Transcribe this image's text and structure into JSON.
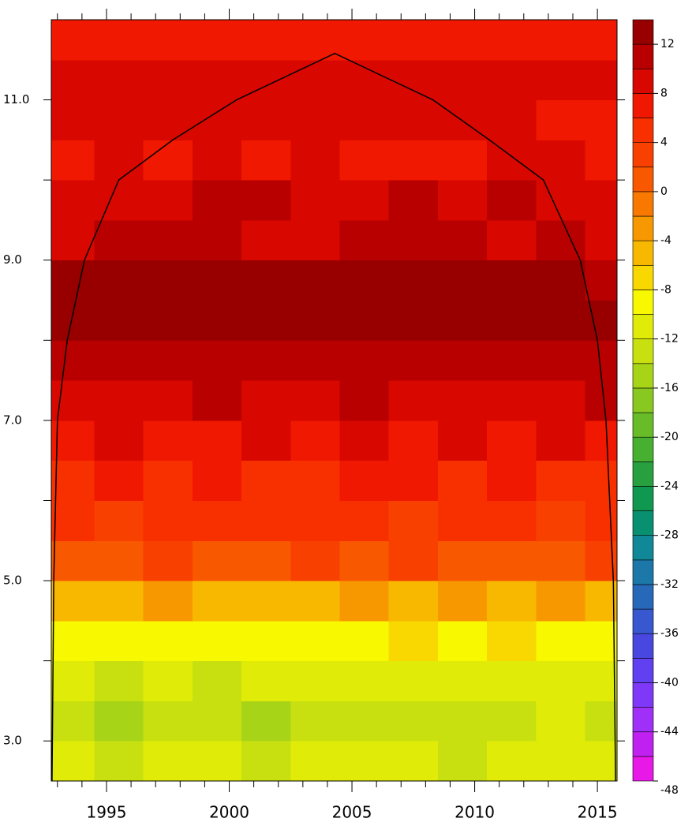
{
  "chart_data": {
    "type": "contour",
    "x": [
      1993.5,
      1995.5,
      1997.5,
      1999.5,
      2001.5,
      2003.5,
      2005.5,
      2007.5,
      2009.5,
      2011.5,
      2013.5,
      2015.5
    ],
    "y": [
      2.75,
      3.25,
      3.75,
      4.25,
      4.75,
      5.25,
      5.75,
      6.25,
      6.75,
      7.25,
      7.75,
      8.25,
      8.75,
      9.25,
      9.75,
      10.25,
      10.75,
      11.25,
      11.75
    ],
    "z": [
      [
        -12,
        -13,
        -11,
        -12,
        -13,
        -12,
        -11,
        -12,
        -13,
        -12,
        -11,
        -12
      ],
      [
        -14,
        -15,
        -13,
        -14,
        -15,
        -13,
        -14,
        -13,
        -14,
        -13,
        -12,
        -13
      ],
      [
        -12,
        -13,
        -12,
        -13,
        -12,
        -12,
        -11,
        -12,
        -11,
        -12,
        -11,
        -12
      ],
      [
        -9,
        -10,
        -9,
        -9,
        -10,
        -9,
        -9,
        -8,
        -9,
        -8,
        -9,
        -9
      ],
      [
        -5,
        -6,
        -4,
        -5,
        -6,
        -5,
        -4,
        -5,
        -4,
        -5,
        -4,
        -5
      ],
      [
        1,
        0,
        2,
        1,
        0,
        2,
        1,
        2,
        1,
        0,
        1,
        2
      ],
      [
        4,
        3,
        5,
        4,
        4,
        5,
        4,
        3,
        5,
        4,
        3,
        4
      ],
      [
        5,
        6,
        5,
        6,
        5,
        5,
        6,
        6,
        5,
        6,
        5,
        5
      ],
      [
        7,
        8,
        7,
        7,
        8,
        7,
        8,
        7,
        8,
        7,
        8,
        7
      ],
      [
        9,
        8,
        9,
        10,
        9,
        9,
        10,
        9,
        8,
        9,
        9,
        10
      ],
      [
        10,
        11,
        10,
        10,
        11,
        10,
        11,
        10,
        11,
        10,
        11,
        10
      ],
      [
        12,
        12,
        12,
        13,
        12,
        12,
        13,
        12,
        12,
        13,
        12,
        12
      ],
      [
        12,
        13,
        12,
        12,
        12,
        12,
        12,
        12,
        13,
        12,
        12,
        11
      ],
      [
        9,
        10,
        10,
        10,
        9,
        9,
        10,
        10,
        10,
        9,
        10,
        9
      ],
      [
        8,
        9,
        9,
        10,
        10,
        9,
        9,
        10,
        9,
        10,
        9,
        9
      ],
      [
        7,
        8,
        7,
        8,
        7,
        8,
        7,
        6,
        7,
        8,
        8,
        7
      ],
      [
        8,
        8,
        8,
        9,
        9,
        8,
        9,
        8,
        9,
        8,
        7,
        7
      ],
      [
        8,
        8,
        9,
        9,
        9,
        9,
        8,
        8,
        9,
        8,
        8,
        8
      ],
      [
        7,
        7,
        6,
        6,
        6,
        6,
        6,
        6,
        6,
        6,
        6,
        6
      ]
    ],
    "levels_lim": [
      -48,
      14
    ],
    "level_step": 2,
    "level_colors": [
      "#e818e8",
      "#c020f0",
      "#a030f8",
      "#8038f8",
      "#6040f0",
      "#4848e0",
      "#3858d0",
      "#2868b8",
      "#1c78a8",
      "#108898",
      "#089070",
      "#109850",
      "#28a040",
      "#48b030",
      "#68bc28",
      "#88c820",
      "#a8d418",
      "#c8e010",
      "#e0ec08",
      "#f8f800",
      "#f8d800",
      "#f8b800",
      "#f89800",
      "#f87800",
      "#f85800",
      "#f84000",
      "#f83000",
      "#f01800",
      "#d80800",
      "#b80000",
      "#980000"
    ],
    "level_ticks": [
      -48,
      -44,
      -40,
      -36,
      -32,
      -28,
      -24,
      -20,
      -16,
      -12,
      -8,
      -4,
      0,
      4,
      8,
      12
    ],
    "coi": {
      "color": "#000000",
      "x": [
        1992.78,
        1992.85,
        1993.0,
        1993.4,
        1994.1,
        1995.5,
        1997.7,
        2000.3,
        2004.3,
        2008.3,
        2010.6,
        2012.8,
        2014.3,
        2015.0,
        2015.35,
        2015.65,
        2015.74
      ],
      "y": [
        2.5,
        5.0,
        7.0,
        8.0,
        9.0,
        10.0,
        10.5,
        11.0,
        11.58,
        11.0,
        10.5,
        10.0,
        9.0,
        8.0,
        7.0,
        5.0,
        2.5
      ]
    },
    "xlim": [
      1992.75,
      2015.8
    ],
    "ylim": [
      2.5,
      12.0
    ],
    "xticks": [
      1995,
      2000,
      2005,
      2010,
      2015
    ],
    "xminor_ticks": [
      1993,
      1994,
      1996,
      1997,
      1998,
      1999,
      2001,
      2002,
      2003,
      2004,
      2006,
      2007,
      2008,
      2009,
      2011,
      2012,
      2013,
      2014
    ],
    "yticks": [
      {
        "value": 3,
        "label": "3.0"
      },
      {
        "value": 5,
        "label": "5.0"
      },
      {
        "value": 7,
        "label": "7.0"
      },
      {
        "value": 9,
        "label": "9.0"
      },
      {
        "value": 11,
        "label": "11.0"
      }
    ],
    "yminor_ticks": [
      4,
      6,
      8,
      10
    ]
  }
}
